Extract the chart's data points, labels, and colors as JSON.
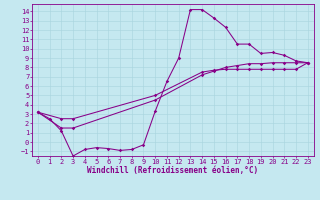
{
  "xlabel": "Windchill (Refroidissement éolien,°C)",
  "bg_color": "#c5e8f0",
  "line_color": "#880088",
  "xlim": [
    -0.5,
    23.5
  ],
  "ylim": [
    -1.5,
    14.8
  ],
  "xticks": [
    0,
    1,
    2,
    3,
    4,
    5,
    6,
    7,
    8,
    9,
    10,
    11,
    12,
    13,
    14,
    15,
    16,
    17,
    18,
    19,
    20,
    21,
    22,
    23
  ],
  "yticks": [
    -1,
    0,
    1,
    2,
    3,
    4,
    5,
    6,
    7,
    8,
    9,
    10,
    11,
    12,
    13,
    14
  ],
  "line1_x": [
    0,
    1,
    2,
    3,
    4,
    5,
    6,
    7,
    8,
    9,
    10,
    11,
    12,
    13,
    14,
    15,
    16,
    17,
    18,
    19,
    20,
    21,
    22,
    23
  ],
  "line1_y": [
    3.2,
    2.5,
    1.2,
    -1.5,
    -0.8,
    -0.6,
    -0.7,
    -0.9,
    -0.8,
    -0.3,
    3.3,
    6.5,
    9.0,
    14.2,
    14.2,
    13.3,
    12.3,
    10.5,
    10.5,
    9.5,
    9.6,
    9.3,
    8.7,
    8.5
  ],
  "line2_x": [
    0,
    2,
    3,
    10,
    14,
    15,
    16,
    17,
    18,
    19,
    20,
    21,
    22,
    23
  ],
  "line2_y": [
    3.2,
    1.5,
    1.5,
    4.5,
    7.2,
    7.6,
    8.0,
    8.2,
    8.4,
    8.4,
    8.5,
    8.5,
    8.5,
    8.5
  ],
  "line3_x": [
    0,
    2,
    3,
    10,
    14,
    15,
    16,
    17,
    18,
    19,
    20,
    21,
    22,
    23
  ],
  "line3_y": [
    3.2,
    2.5,
    2.5,
    5.0,
    7.5,
    7.7,
    7.8,
    7.8,
    7.8,
    7.8,
    7.8,
    7.8,
    7.8,
    8.5
  ],
  "grid_color": "#a8d4de",
  "tick_fontsize": 5,
  "xlabel_fontsize": 5.5
}
